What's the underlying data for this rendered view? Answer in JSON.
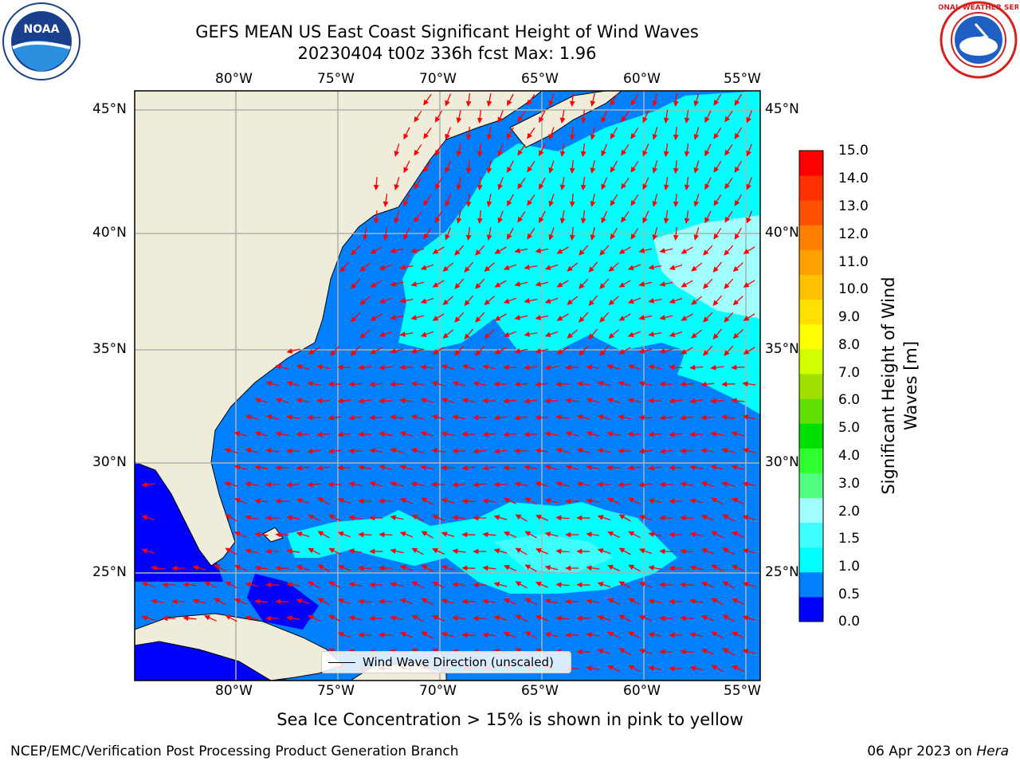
{
  "title": {
    "line1": "GEFS MEAN US East Coast Significant Height of Wind Waves",
    "line2": "20230404 t00z 336h fcst   Max: 1.96"
  },
  "axes": {
    "lon_labels": [
      "80°W",
      "75°W",
      "70°W",
      "65°W",
      "60°W",
      "55°W"
    ],
    "lat_labels": [
      "45°N",
      "40°N",
      "35°N",
      "30°N",
      "25°N"
    ]
  },
  "colorbar": {
    "label_line1": "Significant Height of Wind",
    "label_line2": "Waves [m]",
    "ticks": [
      "15.0",
      "14.0",
      "13.0",
      "12.0",
      "11.0",
      "10.0",
      "9.0",
      "8.0",
      "7.0",
      "6.0",
      "5.0",
      "4.0",
      "3.0",
      "2.0",
      "1.5",
      "1.0",
      "0.5",
      "0.0"
    ],
    "colors": [
      "#0000ff",
      "#0080ff",
      "#00ffff",
      "#40ffff",
      "#a0ffff",
      "#50ff80",
      "#30ff30",
      "#00e000",
      "#60e000",
      "#a0e000",
      "#d0ff00",
      "#ffff00",
      "#ffe000",
      "#ffc000",
      "#ffa000",
      "#ff8000",
      "#ff5000",
      "#ff3000",
      "#ff0000"
    ]
  },
  "legend": {
    "label": "Wind Wave Direction (unscaled)"
  },
  "ice_note": "Sea Ice Concentration > 15% is shown in pink to yellow",
  "footer": {
    "left": "NCEP/EMC/Verification Post Processing Product Generation Branch",
    "right_date": "06 Apr 2023 on ",
    "right_host": "Hera"
  },
  "logos": {
    "noaa_text": "NOAA",
    "nws_text": "NATIONAL WEATHER SERVICE"
  },
  "colors": {
    "land": "#efedda",
    "ocean_low": "#0000ff",
    "ocean_mid": "#0080ff",
    "ocean_high": "#00ffff",
    "ocean_higher": "#a0ffff",
    "arrows": "#ff0000",
    "grid": "#b0b0b0"
  }
}
